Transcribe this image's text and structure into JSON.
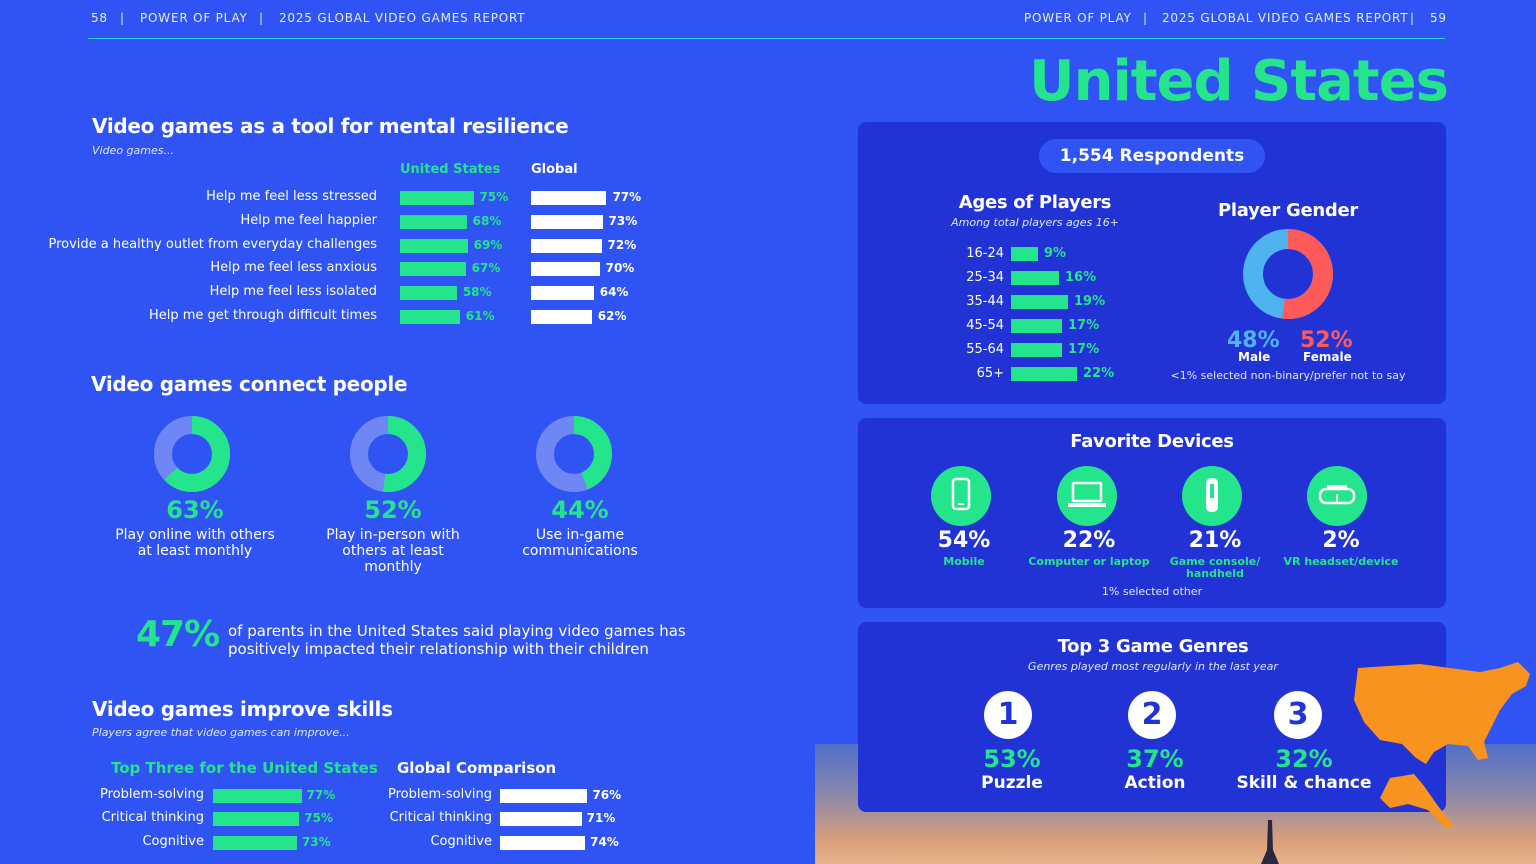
{
  "header": {
    "left_page": "58",
    "left_brand": "POWER OF PLAY",
    "left_report": "2025 GLOBAL VIDEO GAMES REPORT",
    "right_brand": "POWER OF PLAY",
    "right_report": "2025 GLOBAL VIDEO GAMES REPORT",
    "right_page": "59",
    "separator": "|"
  },
  "country_title": "United States",
  "resilience": {
    "title": "Video games as a tool for mental resilience",
    "subtitle": "Video games...",
    "col_us": "United States",
    "col_global": "Global",
    "rows": [
      {
        "label": "Help me feel less stressed",
        "us": 75,
        "us_label": "75%",
        "global": 77,
        "global_label": "77%"
      },
      {
        "label": "Help me feel happier",
        "us": 68,
        "us_label": "68%",
        "global": 73,
        "global_label": "73%"
      },
      {
        "label": "Provide a healthy outlet from everyday challenges",
        "us": 69,
        "us_label": "69%",
        "global": 72,
        "global_label": "72%"
      },
      {
        "label": "Help me feel less anxious",
        "us": 67,
        "us_label": "67%",
        "global": 70,
        "global_label": "70%"
      },
      {
        "label": "Help me feel less isolated",
        "us": 58,
        "us_label": "58%",
        "global": 64,
        "global_label": "64%"
      },
      {
        "label": "Help me get through difficult times",
        "us": 61,
        "us_label": "61%",
        "global": 62,
        "global_label": "62%"
      }
    ]
  },
  "connect": {
    "title": "Video games connect people",
    "items": [
      {
        "value": 63,
        "pct": "63%",
        "line1": "Play online with others",
        "line2": "at least monthly",
        "line3": ""
      },
      {
        "value": 52,
        "pct": "52%",
        "line1": "Play in-person with",
        "line2": "others at least",
        "line3": "monthly"
      },
      {
        "value": 44,
        "pct": "44%",
        "line1": "Use in-game",
        "line2": "communications",
        "line3": ""
      }
    ],
    "parents_pct": "47%",
    "parents_line1": "of parents in the United States said playing video games has",
    "parents_line2": "positively impacted their relationship with their children"
  },
  "skills": {
    "title": "Video games improve skills",
    "subtitle": "Players agree that video games can improve...",
    "us_title": "Top Three for the United States",
    "global_title": "Global Comparison",
    "us_rows": [
      {
        "label": "Problem-solving",
        "value": 77,
        "pct": "77%"
      },
      {
        "label": "Critical thinking",
        "value": 75,
        "pct": "75%"
      },
      {
        "label": "Cognitive",
        "value": 73,
        "pct": "73%"
      }
    ],
    "global_rows": [
      {
        "label": "Problem-solving",
        "value": 76,
        "pct": "76%"
      },
      {
        "label": "Critical thinking",
        "value": 71,
        "pct": "71%"
      },
      {
        "label": "Cognitive",
        "value": 74,
        "pct": "74%"
      }
    ]
  },
  "demographics": {
    "respondents": "1,554 Respondents",
    "ages_title": "Ages of Players",
    "ages_subtitle": "Among total players ages 16+",
    "ages": [
      {
        "label": "16-24",
        "value": 9,
        "pct": "9%"
      },
      {
        "label": "25-34",
        "value": 16,
        "pct": "16%"
      },
      {
        "label": "35-44",
        "value": 19,
        "pct": "19%"
      },
      {
        "label": "45-54",
        "value": 17,
        "pct": "17%"
      },
      {
        "label": "55-64",
        "value": 17,
        "pct": "17%"
      },
      {
        "label": "65+",
        "value": 22,
        "pct": "22%"
      }
    ],
    "gender_title": "Player Gender",
    "male_value": 48,
    "male_pct": "48%",
    "male_label": "Male",
    "female_value": 52,
    "female_pct": "52%",
    "female_label": "Female",
    "gender_note": "<1% selected non-binary/prefer not to say",
    "colors": {
      "male": "#4fb3f0",
      "female": "#ff5a5a"
    }
  },
  "devices": {
    "title": "Favorite Devices",
    "items": [
      {
        "icon": "mobile-icon",
        "pct": "54%",
        "label1": "Mobile",
        "label2": ""
      },
      {
        "icon": "laptop-icon",
        "pct": "22%",
        "label1": "Computer or laptop",
        "label2": ""
      },
      {
        "icon": "console-icon",
        "pct": "21%",
        "label1": "Game console/",
        "label2": "handheld"
      },
      {
        "icon": "vr-headset-icon",
        "pct": "2%",
        "label1": "VR headset/device",
        "label2": ""
      }
    ],
    "note": "1% selected other"
  },
  "genres": {
    "title": "Top 3 Game Genres",
    "subtitle": "Genres played most regularly in the last year",
    "items": [
      {
        "rank": "1",
        "pct": "53%",
        "label": "Puzzle"
      },
      {
        "rank": "2",
        "pct": "37%",
        "label": "Action"
      },
      {
        "rank": "3",
        "pct": "32%",
        "label": "Skill & chance"
      }
    ]
  },
  "colors": {
    "background": "#2f54f3",
    "panel": "#2233d6",
    "accent_green": "#24e58b",
    "map_orange": "#f7931e"
  }
}
